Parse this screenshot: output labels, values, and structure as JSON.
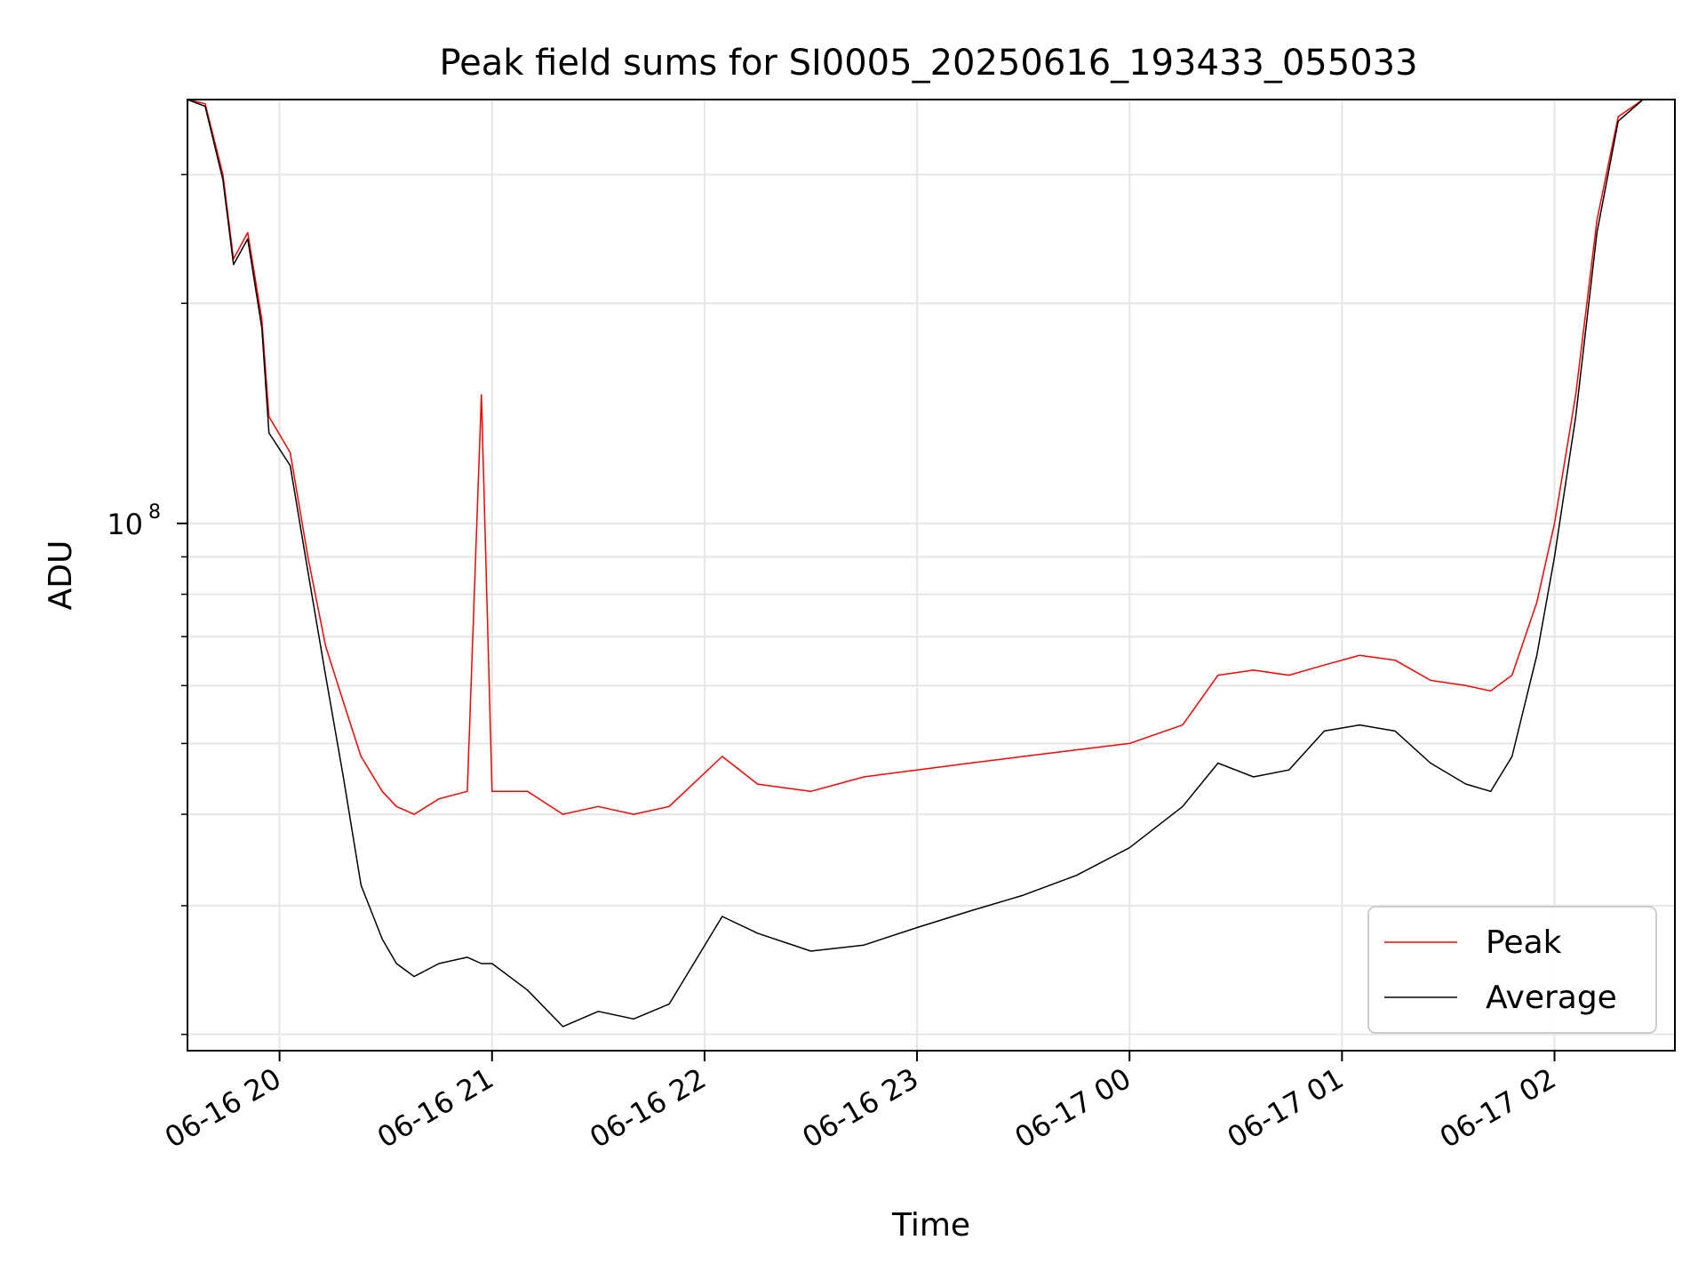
{
  "chart_data": {
    "type": "line",
    "title": "Peak field sums for SI0005_20250616_193433_055033",
    "xlabel": "Time",
    "ylabel": "ADU",
    "y_scale": "log",
    "ylim": [
      19000000,
      380000000
    ],
    "xlim": [
      "2025-06-16 19:34",
      "2025-06-17 02:34"
    ],
    "x_ticks": [
      {
        "t": "2025-06-16 20:00",
        "label": "06-16 20"
      },
      {
        "t": "2025-06-16 21:00",
        "label": "06-16 21"
      },
      {
        "t": "2025-06-16 22:00",
        "label": "06-16 22"
      },
      {
        "t": "2025-06-16 23:00",
        "label": "06-16 23"
      },
      {
        "t": "2025-06-17 00:00",
        "label": "06-17 00"
      },
      {
        "t": "2025-06-17 01:00",
        "label": "06-17 01"
      },
      {
        "t": "2025-06-17 02:00",
        "label": "06-17 02"
      }
    ],
    "y_major_ticks": [
      {
        "value": 100000000,
        "label_base": "10",
        "label_exp": "8"
      }
    ],
    "y_minor_ticks": [
      20000000,
      30000000,
      40000000,
      50000000,
      60000000,
      70000000,
      80000000,
      90000000,
      200000000,
      300000000
    ],
    "grid": true,
    "legend_position": "lower-right",
    "series": [
      {
        "name": "Peak",
        "color": "#ff0000",
        "data": [
          [
            "2025-06-16 19:34",
            380000000
          ],
          [
            "2025-06-16 19:39",
            375000000
          ],
          [
            "2025-06-16 19:44",
            300000000
          ],
          [
            "2025-06-16 19:47",
            230000000
          ],
          [
            "2025-06-16 19:51",
            250000000
          ],
          [
            "2025-06-16 19:55",
            190000000
          ],
          [
            "2025-06-16 19:57",
            140000000
          ],
          [
            "2025-06-16 20:03",
            125000000
          ],
          [
            "2025-06-16 20:08",
            90000000
          ],
          [
            "2025-06-16 20:13",
            68000000
          ],
          [
            "2025-06-16 20:18",
            57000000
          ],
          [
            "2025-06-16 20:23",
            48000000
          ],
          [
            "2025-06-16 20:29",
            43000000
          ],
          [
            "2025-06-16 20:33",
            41000000
          ],
          [
            "2025-06-16 20:38",
            40000000
          ],
          [
            "2025-06-16 20:45",
            42000000
          ],
          [
            "2025-06-16 20:53",
            43000000
          ],
          [
            "2025-06-16 20:57",
            150000000
          ],
          [
            "2025-06-16 21:00",
            43000000
          ],
          [
            "2025-06-16 21:10",
            43000000
          ],
          [
            "2025-06-16 21:20",
            40000000
          ],
          [
            "2025-06-16 21:30",
            41000000
          ],
          [
            "2025-06-16 21:40",
            40000000
          ],
          [
            "2025-06-16 21:50",
            41000000
          ],
          [
            "2025-06-16 22:05",
            48000000
          ],
          [
            "2025-06-16 22:15",
            44000000
          ],
          [
            "2025-06-16 22:30",
            43000000
          ],
          [
            "2025-06-16 22:45",
            45000000
          ],
          [
            "2025-06-16 23:00",
            46000000
          ],
          [
            "2025-06-16 23:15",
            47000000
          ],
          [
            "2025-06-16 23:30",
            48000000
          ],
          [
            "2025-06-16 23:45",
            49000000
          ],
          [
            "2025-06-17 00:00",
            50000000
          ],
          [
            "2025-06-17 00:15",
            53000000
          ],
          [
            "2025-06-17 00:25",
            62000000
          ],
          [
            "2025-06-17 00:35",
            63000000
          ],
          [
            "2025-06-17 00:45",
            62000000
          ],
          [
            "2025-06-17 00:55",
            64000000
          ],
          [
            "2025-06-17 01:05",
            66000000
          ],
          [
            "2025-06-17 01:15",
            65000000
          ],
          [
            "2025-06-17 01:25",
            61000000
          ],
          [
            "2025-06-17 01:35",
            60000000
          ],
          [
            "2025-06-17 01:42",
            59000000
          ],
          [
            "2025-06-17 01:48",
            62000000
          ],
          [
            "2025-06-17 01:55",
            78000000
          ],
          [
            "2025-06-17 02:00",
            100000000
          ],
          [
            "2025-06-17 02:06",
            150000000
          ],
          [
            "2025-06-17 02:12",
            260000000
          ],
          [
            "2025-06-17 02:18",
            360000000
          ],
          [
            "2025-06-17 02:25",
            380000000
          ],
          [
            "2025-06-17 02:34",
            380000000
          ]
        ]
      },
      {
        "name": "Average",
        "color": "#000000",
        "data": [
          [
            "2025-06-16 19:34",
            380000000
          ],
          [
            "2025-06-16 19:39",
            372000000
          ],
          [
            "2025-06-16 19:44",
            295000000
          ],
          [
            "2025-06-16 19:47",
            226000000
          ],
          [
            "2025-06-16 19:51",
            245000000
          ],
          [
            "2025-06-16 19:55",
            185000000
          ],
          [
            "2025-06-16 19:57",
            133000000
          ],
          [
            "2025-06-16 20:03",
            120000000
          ],
          [
            "2025-06-16 20:08",
            86000000
          ],
          [
            "2025-06-16 20:13",
            62000000
          ],
          [
            "2025-06-16 20:18",
            45000000
          ],
          [
            "2025-06-16 20:23",
            32000000
          ],
          [
            "2025-06-16 20:29",
            27000000
          ],
          [
            "2025-06-16 20:33",
            25000000
          ],
          [
            "2025-06-16 20:38",
            24000000
          ],
          [
            "2025-06-16 20:45",
            25000000
          ],
          [
            "2025-06-16 20:53",
            25500000
          ],
          [
            "2025-06-16 20:57",
            25000000
          ],
          [
            "2025-06-16 21:00",
            25000000
          ],
          [
            "2025-06-16 21:10",
            23000000
          ],
          [
            "2025-06-16 21:20",
            20500000
          ],
          [
            "2025-06-16 21:30",
            21500000
          ],
          [
            "2025-06-16 21:40",
            21000000
          ],
          [
            "2025-06-16 21:50",
            22000000
          ],
          [
            "2025-06-16 22:05",
            29000000
          ],
          [
            "2025-06-16 22:15",
            27500000
          ],
          [
            "2025-06-16 22:30",
            26000000
          ],
          [
            "2025-06-16 22:45",
            26500000
          ],
          [
            "2025-06-16 23:00",
            28000000
          ],
          [
            "2025-06-16 23:15",
            29500000
          ],
          [
            "2025-06-16 23:30",
            31000000
          ],
          [
            "2025-06-16 23:45",
            33000000
          ],
          [
            "2025-06-17 00:00",
            36000000
          ],
          [
            "2025-06-17 00:15",
            41000000
          ],
          [
            "2025-06-17 00:25",
            47000000
          ],
          [
            "2025-06-17 00:35",
            45000000
          ],
          [
            "2025-06-17 00:45",
            46000000
          ],
          [
            "2025-06-17 00:55",
            52000000
          ],
          [
            "2025-06-17 01:05",
            53000000
          ],
          [
            "2025-06-17 01:15",
            52000000
          ],
          [
            "2025-06-17 01:25",
            47000000
          ],
          [
            "2025-06-17 01:35",
            44000000
          ],
          [
            "2025-06-17 01:42",
            43000000
          ],
          [
            "2025-06-17 01:48",
            48000000
          ],
          [
            "2025-06-17 01:55",
            66000000
          ],
          [
            "2025-06-17 02:00",
            90000000
          ],
          [
            "2025-06-17 02:06",
            140000000
          ],
          [
            "2025-06-17 02:12",
            250000000
          ],
          [
            "2025-06-17 02:18",
            355000000
          ],
          [
            "2025-06-17 02:25",
            380000000
          ],
          [
            "2025-06-17 02:34",
            380000000
          ]
        ]
      }
    ]
  }
}
